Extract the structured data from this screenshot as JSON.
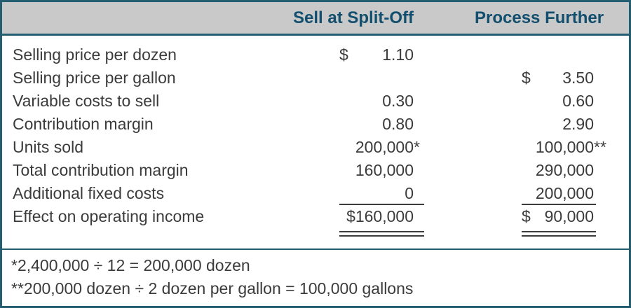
{
  "header": {
    "col1": "Sell at Split-Off",
    "col2": "Process Further"
  },
  "rows": [
    {
      "label": "Selling price per dozen",
      "c1cur": "$",
      "c1": "1.10"
    },
    {
      "label": "Selling price per gallon",
      "c2cur": "$",
      "c2": "3.50"
    },
    {
      "label": "Variable costs to sell",
      "c1": "0.30",
      "c2": "0.60"
    },
    {
      "label": "Contribution margin",
      "c1": "0.80",
      "c2": "2.90"
    },
    {
      "label": "Units sold",
      "c1": "200,000",
      "c1ast": "*",
      "c2": "100,000",
      "c2ast": "**"
    },
    {
      "label": "Total contribution margin",
      "c1": "160,000",
      "c2": "290,000"
    },
    {
      "label": "Additional fixed costs",
      "c1": "0",
      "c2": "200,000"
    },
    {
      "label": "Effect on operating income",
      "c1": "$160,000",
      "c2cur": "$",
      "c2": "90,000"
    }
  ],
  "footnotes": {
    "line1": "*2,400,000 ÷ 12 = 200,000 dozen",
    "line2": "**200,000 dozen ÷ 2 dozen per gallon = 100,000 gallons"
  },
  "colors": {
    "accent_teal": "#235e70",
    "header_bg": "#c9c9c9",
    "header_text": "#124f6e",
    "body_text": "#3b3b3b"
  }
}
